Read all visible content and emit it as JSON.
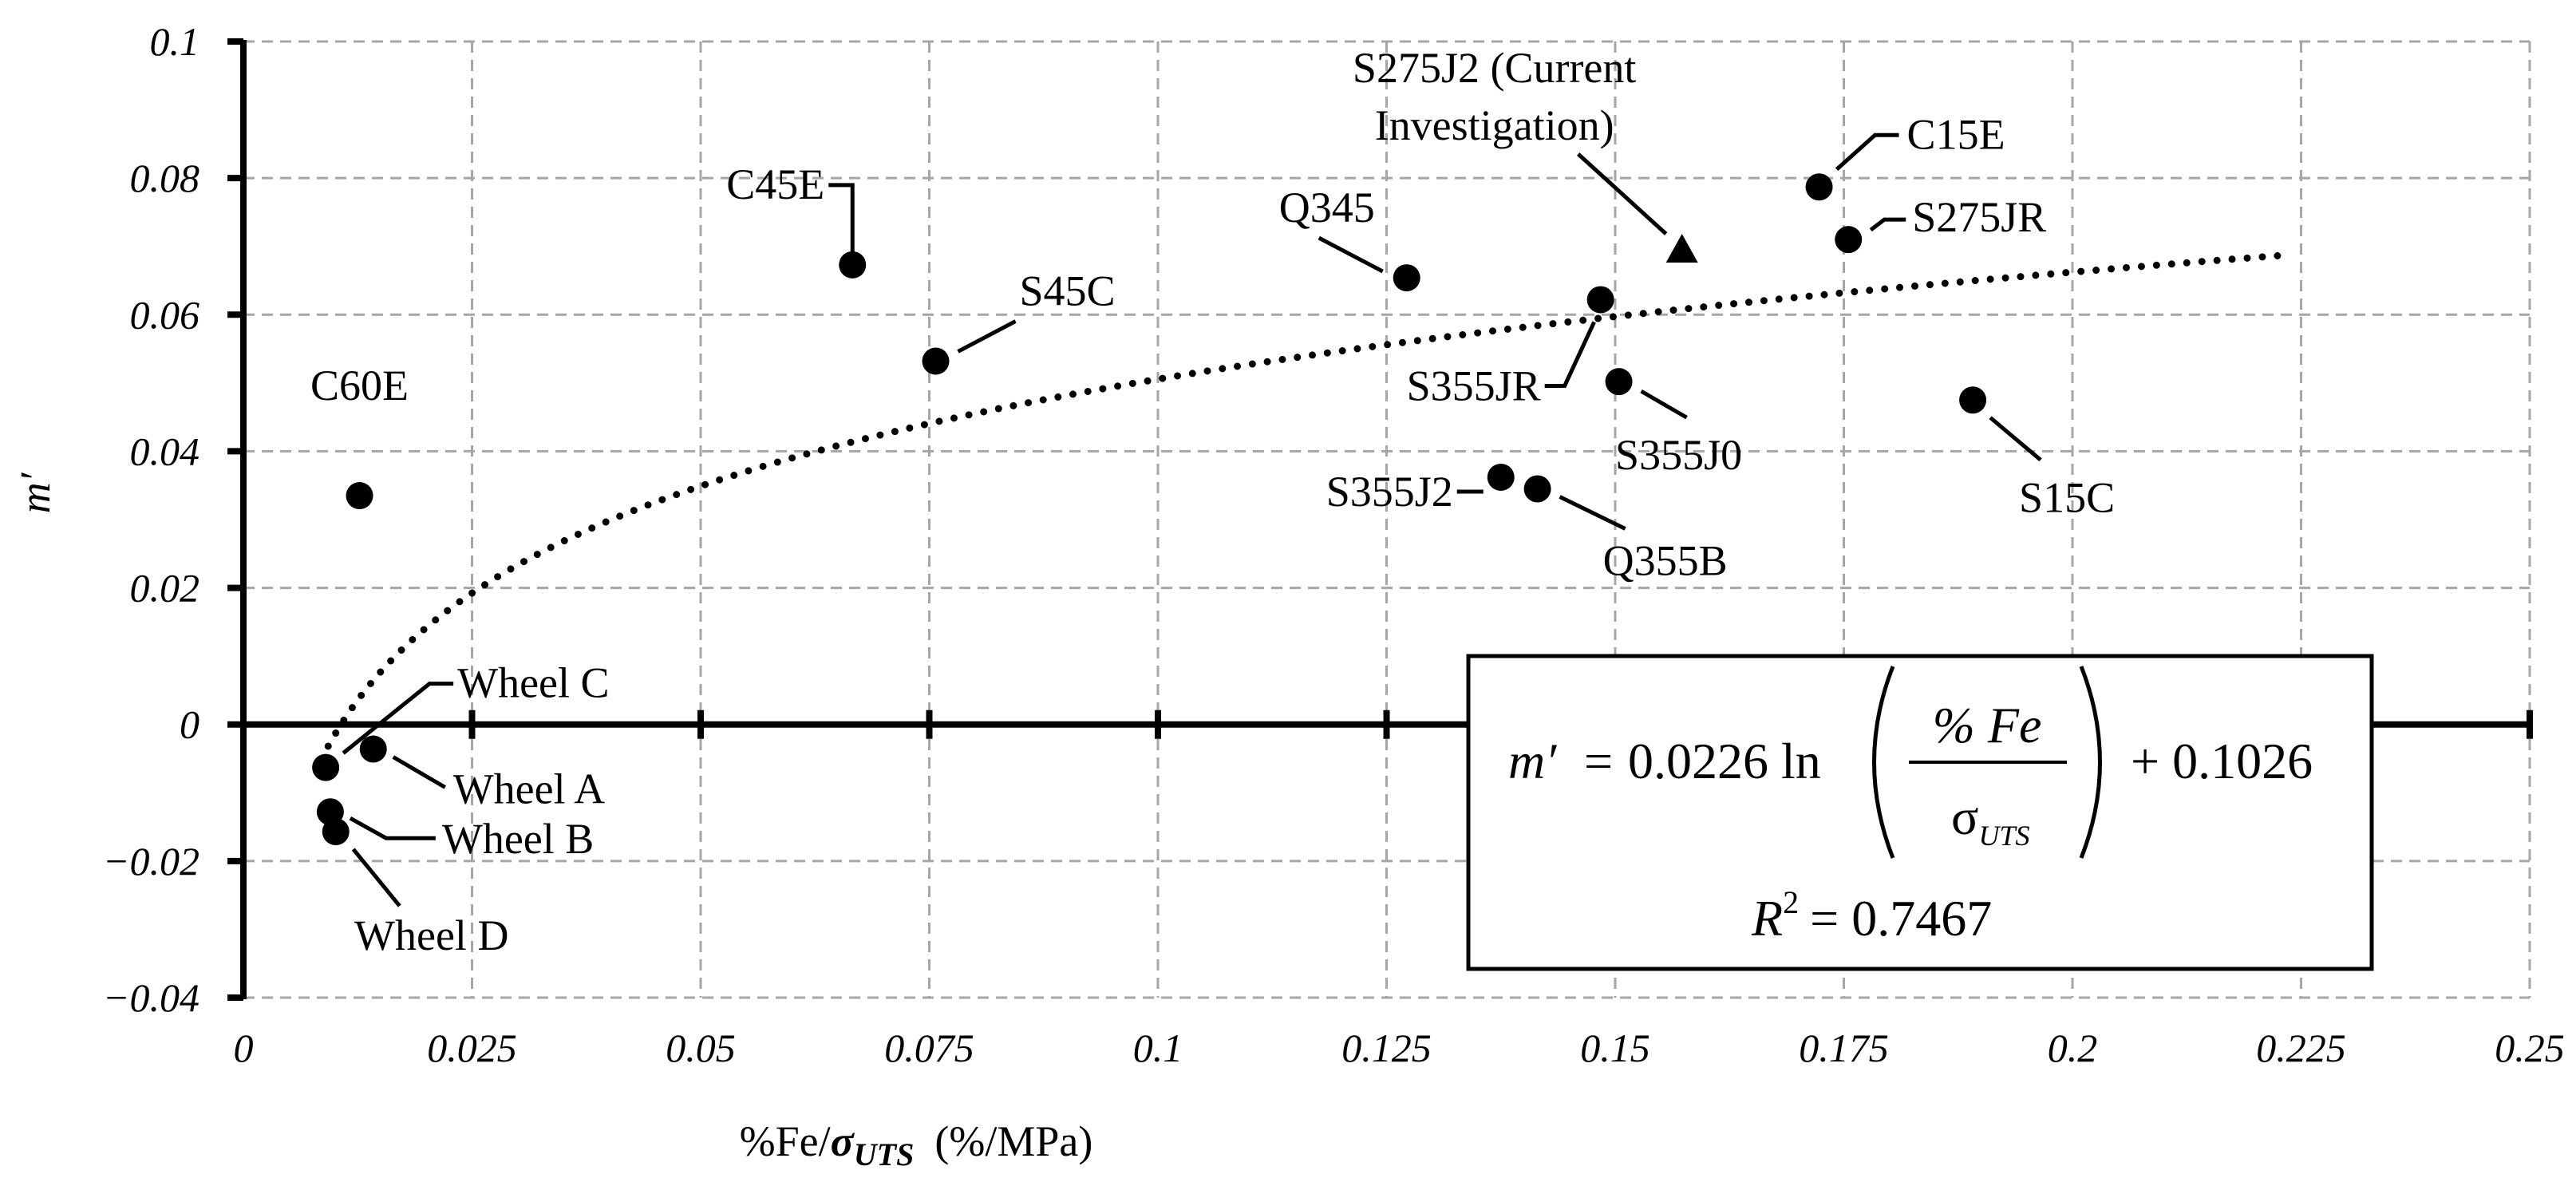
{
  "chart_data": {
    "type": "scatter",
    "xlabel": {
      "main": "%Fe/",
      "sigma": "σ",
      "sub": "UTS",
      "unit": "(%/MPa)"
    },
    "ylabel": "m′",
    "xlim": [
      0,
      0.25
    ],
    "ylim": [
      -0.04,
      0.1
    ],
    "x_ticks": [
      "0",
      "0.025",
      "0.05",
      "0.075",
      "0.1",
      "0.125",
      "0.15",
      "0.175",
      "0.2",
      "0.225",
      "0.25"
    ],
    "y_ticks": [
      "−0.04",
      "−0.02",
      "0",
      "0.02",
      "0.04",
      "0.06",
      "0.08",
      "0.1"
    ],
    "grid": true,
    "points": [
      {
        "label": "C60E",
        "x": 0.0127,
        "y": 0.0335,
        "marker": "circle"
      },
      {
        "label": "C45E",
        "x": 0.0666,
        "y": 0.0673,
        "marker": "circle"
      },
      {
        "label": "S45C",
        "x": 0.0757,
        "y": 0.0532,
        "marker": "circle"
      },
      {
        "label": "Q345",
        "x": 0.1272,
        "y": 0.0654,
        "marker": "circle"
      },
      {
        "label": "S355JR",
        "x": 0.1484,
        "y": 0.0622,
        "marker": "circle"
      },
      {
        "label": "S355J0",
        "x": 0.1504,
        "y": 0.0502,
        "marker": "circle"
      },
      {
        "label": "S355J2",
        "x": 0.1375,
        "y": 0.0362,
        "marker": "circle"
      },
      {
        "label": "Q355B",
        "x": 0.1415,
        "y": 0.0345,
        "marker": "circle"
      },
      {
        "label": "C15E",
        "x": 0.1723,
        "y": 0.0787,
        "marker": "circle"
      },
      {
        "label": "S275JR",
        "x": 0.1755,
        "y": 0.071,
        "marker": "circle"
      },
      {
        "label": "S15C",
        "x": 0.1891,
        "y": 0.0475,
        "marker": "circle"
      },
      {
        "label": "S275J2 (Current Investigation)",
        "x": 0.1573,
        "y": 0.0695,
        "marker": "triangle"
      },
      {
        "label": "Wheel C",
        "x": 0.009,
        "y": -0.0063,
        "marker": "circle"
      },
      {
        "label": "Wheel A",
        "x": 0.0142,
        "y": -0.0036,
        "marker": "circle"
      },
      {
        "label": "Wheel B",
        "x": 0.0095,
        "y": -0.0128,
        "marker": "circle"
      },
      {
        "label": "Wheel D",
        "x": 0.0101,
        "y": -0.0157,
        "marker": "circle"
      }
    ],
    "trendline": {
      "type": "logarithmic",
      "a": 0.0226,
      "b": 0.1026,
      "x_range": [
        0.0085,
        0.223
      ],
      "style": "dotted"
    },
    "equation": {
      "lhs": "m′",
      "eq": "=",
      "coef": "0.0226 ln",
      "num": "% Fe",
      "den_sigma": "σ",
      "den_sub": "UTS",
      "plus": "+ 0.1026",
      "r2_lhs": "R",
      "r2_sup": "2",
      "r2_rhs": "= 0.7467"
    }
  }
}
